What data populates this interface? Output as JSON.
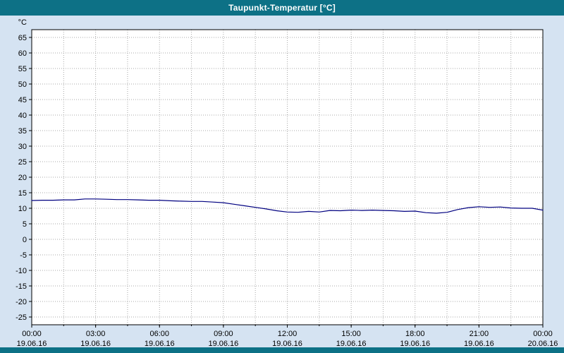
{
  "window": {
    "title": "Taupunkt-Temperatur [°C]"
  },
  "colors": {
    "titlebar": "#0d7186",
    "chart_background": "#d5e3f2",
    "plot_background": "#ffffff",
    "grid": "#a8a8a8",
    "axis": "#000000",
    "line": "#000080",
    "tick_text": "#000000"
  },
  "chart_data": {
    "type": "line",
    "title": "Taupunkt-Temperatur [°C]",
    "ylabel": "°C",
    "ylim": [
      -27.5,
      67.5
    ],
    "xlim_hours": [
      0,
      24
    ],
    "grid": true,
    "legend": "none",
    "y_ticks": [
      65,
      60,
      55,
      50,
      45,
      40,
      35,
      30,
      25,
      20,
      15,
      10,
      5,
      0,
      -5,
      -10,
      -15,
      -20,
      -25
    ],
    "x_ticks": [
      {
        "hour": 0,
        "time": "00:00",
        "date": "19.06.16"
      },
      {
        "hour": 3,
        "time": "03:00",
        "date": "19.06.16"
      },
      {
        "hour": 6,
        "time": "06:00",
        "date": "19.06.16"
      },
      {
        "hour": 9,
        "time": "09:00",
        "date": "19.06.16"
      },
      {
        "hour": 12,
        "time": "12:00",
        "date": "19.06.16"
      },
      {
        "hour": 15,
        "time": "15:00",
        "date": "19.06.16"
      },
      {
        "hour": 18,
        "time": "18:00",
        "date": "19.06.16"
      },
      {
        "hour": 21,
        "time": "21:00",
        "date": "19.06.16"
      },
      {
        "hour": 24,
        "time": "00:00",
        "date": "20.06.16"
      }
    ],
    "minor_x_grid_step_hours": 1.5,
    "series": [
      {
        "name": "Taupunkt-Temperatur",
        "color": "#000080",
        "x": [
          0,
          0.5,
          1,
          1.5,
          2,
          2.5,
          3,
          3.5,
          4,
          4.5,
          5,
          5.5,
          6,
          6.5,
          7,
          7.5,
          8,
          8.5,
          9,
          9.5,
          10,
          10.5,
          11,
          11.5,
          12,
          12.5,
          13,
          13.5,
          14,
          14.5,
          15,
          15.5,
          16,
          16.5,
          17,
          17.5,
          18,
          18.5,
          19,
          19.5,
          20,
          20.5,
          21,
          21.5,
          22,
          22.5,
          23,
          23.5,
          24
        ],
        "values": [
          12.5,
          12.6,
          12.6,
          12.7,
          12.7,
          13.0,
          13.0,
          12.9,
          12.8,
          12.8,
          12.7,
          12.6,
          12.6,
          12.4,
          12.3,
          12.2,
          12.2,
          12.0,
          11.8,
          11.3,
          10.8,
          10.3,
          9.8,
          9.2,
          8.8,
          8.7,
          9.0,
          8.8,
          9.3,
          9.2,
          9.4,
          9.3,
          9.4,
          9.3,
          9.2,
          9.0,
          9.1,
          8.6,
          8.4,
          8.7,
          9.6,
          10.2,
          10.5,
          10.3,
          10.4,
          10.1,
          10.0,
          10.0,
          9.4
        ]
      }
    ]
  }
}
